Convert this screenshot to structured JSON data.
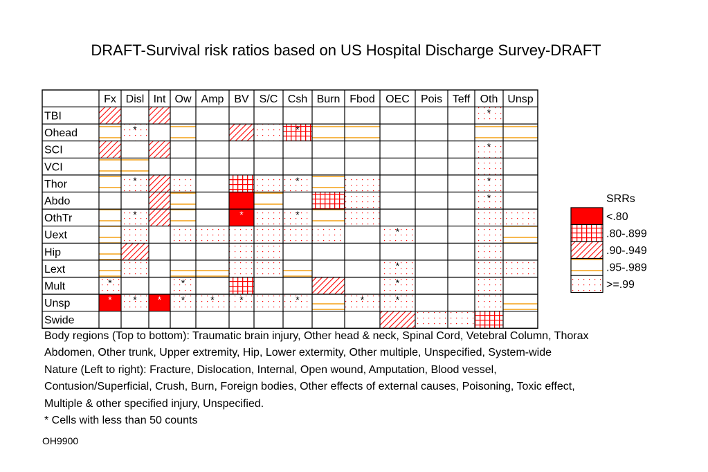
{
  "title": "DRAFT-Survival risk ratios based on US Hospital Discharge Survey-DRAFT",
  "chart_data": {
    "type": "heatmap",
    "columns": [
      "Fx",
      "Disl",
      "Int",
      "Ow",
      "Amp",
      "BV",
      "S/C",
      "Csh",
      "Burn",
      "Fbod",
      "OEC",
      "Pois",
      "Teff",
      "Oth",
      "Unsp"
    ],
    "rows": [
      "TBI",
      "Ohead",
      "SCI",
      "VCI",
      "Thor",
      "Abdo",
      "OthTr",
      "Uext",
      "Hip",
      "Lext",
      "Mult",
      "Unsp",
      "Swide"
    ],
    "categories": [
      {
        "code": 1,
        "label": "<.80",
        "pattern": "solid-red"
      },
      {
        "code": 2,
        "label": ".80-.899",
        "pattern": "red-grid"
      },
      {
        "code": 3,
        "label": ".90-.949",
        "pattern": "red-diagonal"
      },
      {
        "code": 4,
        "label": ".95-.989",
        "pattern": "orange-lines"
      },
      {
        "code": 5,
        "label": ">=.99",
        "pattern": "red-dots"
      }
    ],
    "cells": [
      [
        3,
        0,
        3,
        0,
        0,
        0,
        0,
        0,
        0,
        0,
        0,
        0,
        0,
        5,
        0
      ],
      [
        4,
        5,
        0,
        4,
        0,
        3,
        5,
        2,
        4,
        4,
        0,
        0,
        0,
        4,
        4
      ],
      [
        3,
        0,
        3,
        0,
        0,
        0,
        0,
        0,
        0,
        0,
        0,
        0,
        0,
        5,
        0
      ],
      [
        4,
        4,
        0,
        0,
        0,
        0,
        0,
        0,
        0,
        0,
        0,
        0,
        0,
        5,
        0
      ],
      [
        4,
        5,
        3,
        5,
        0,
        2,
        5,
        5,
        4,
        5,
        0,
        0,
        0,
        5,
        0
      ],
      [
        0,
        0,
        3,
        4,
        0,
        1,
        4,
        0,
        2,
        5,
        0,
        0,
        0,
        5,
        0
      ],
      [
        4,
        5,
        3,
        4,
        0,
        1,
        5,
        5,
        4,
        5,
        0,
        0,
        0,
        5,
        5
      ],
      [
        4,
        5,
        0,
        5,
        5,
        5,
        5,
        5,
        5,
        0,
        5,
        0,
        0,
        5,
        4
      ],
      [
        4,
        3,
        0,
        0,
        0,
        5,
        5,
        0,
        0,
        0,
        0,
        0,
        0,
        5,
        0
      ],
      [
        4,
        5,
        0,
        4,
        4,
        5,
        5,
        4,
        0,
        0,
        5,
        0,
        0,
        5,
        5
      ],
      [
        5,
        0,
        0,
        5,
        0,
        2,
        0,
        0,
        3,
        0,
        5,
        0,
        0,
        5,
        0
      ],
      [
        1,
        5,
        1,
        5,
        5,
        5,
        5,
        5,
        4,
        5,
        5,
        0,
        0,
        5,
        4
      ],
      [
        0,
        0,
        0,
        0,
        0,
        0,
        0,
        0,
        0,
        0,
        3,
        5,
        5,
        2,
        0
      ]
    ],
    "star_marker": "*",
    "starred": [
      [
        0,
        13
      ],
      [
        1,
        1
      ],
      [
        1,
        7
      ],
      [
        2,
        13
      ],
      [
        4,
        1
      ],
      [
        4,
        7
      ],
      [
        4,
        13
      ],
      [
        5,
        13
      ],
      [
        6,
        1
      ],
      [
        6,
        5
      ],
      [
        6,
        7
      ],
      [
        7,
        10
      ],
      [
        9,
        10
      ],
      [
        10,
        0
      ],
      [
        10,
        3
      ],
      [
        10,
        10
      ],
      [
        11,
        0
      ],
      [
        11,
        1
      ],
      [
        11,
        2
      ],
      [
        11,
        3
      ],
      [
        11,
        4
      ],
      [
        11,
        5
      ],
      [
        11,
        7
      ],
      [
        11,
        9
      ],
      [
        11,
        10
      ]
    ]
  },
  "legend_title": "SRRs",
  "notes": [
    "Body regions (Top to bottom): Traumatic brain injury, Other head & neck, Spinal Cord, Vetebral Column, Thorax",
    "Abdomen, Other trunk, Upper extremity, Hip, Lower extermity, Other multiple, Unspecified, System-wide",
    "Nature (Left to right): Fracture, Dislocation, Internal, Open wound, Amputation, Blood vessel,",
    "Contusion/Superficial, Crush, Burn, Foreign bodies, Other effects of external causes, Poisoning, Toxic effect,",
    "Multiple & other specified injury, Unspecified.",
    "* Cells with less than 50 counts"
  ],
  "footer_code": "OH9900",
  "colors": {
    "red": "#ff0000",
    "orange": "#f5a623",
    "grid_line": "#000000"
  }
}
